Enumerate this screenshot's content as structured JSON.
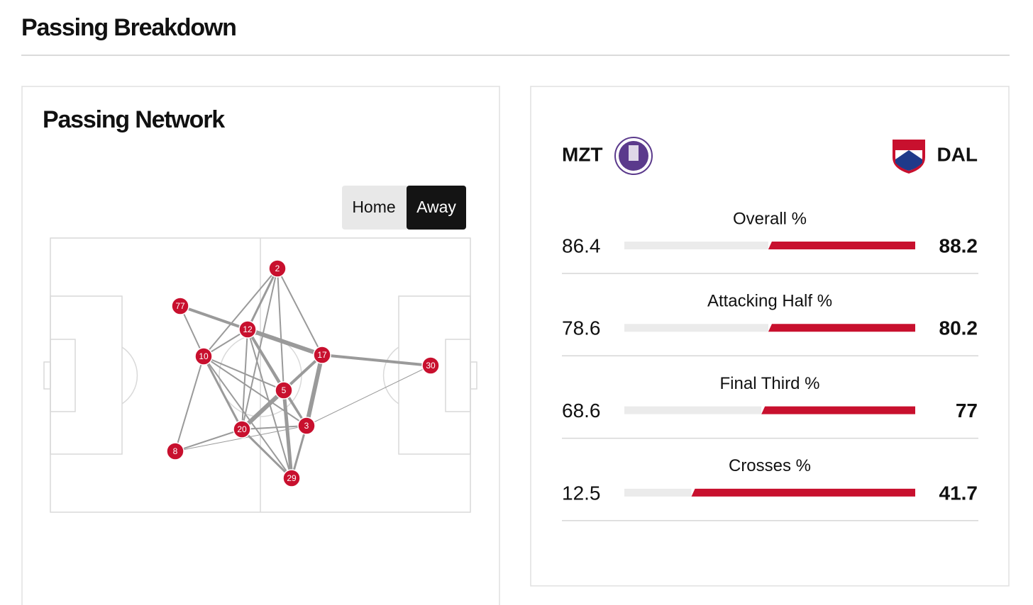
{
  "header": {
    "title": "Passing Breakdown"
  },
  "network": {
    "title": "Passing Network",
    "toggle": [
      "Home",
      "Away"
    ],
    "nodes": [
      "2",
      "77",
      "12",
      "10",
      "17",
      "30",
      "5",
      "3",
      "20",
      "8",
      "29"
    ]
  },
  "stats": {
    "home_team": "MZT",
    "away_team": "DAL",
    "rows": [
      {
        "label": "Overall %",
        "home": 86.4,
        "away": 88.2
      },
      {
        "label": "Attacking Half %",
        "home": 78.6,
        "away": 80.2
      },
      {
        "label": "Final Third %",
        "home": 68.6,
        "away": 77
      },
      {
        "label": "Crosses %",
        "home": 12.5,
        "away": 41.7
      }
    ]
  }
}
